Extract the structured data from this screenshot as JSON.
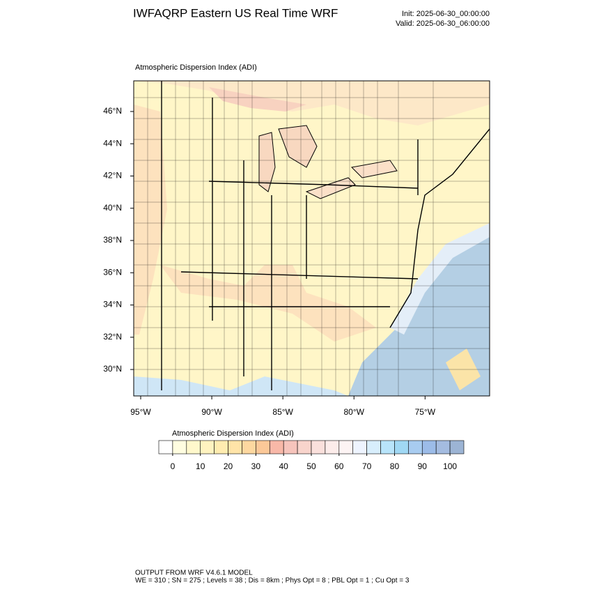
{
  "chart_data": {
    "type": "map",
    "title": "IWFAQRP Eastern US Real Time WRF",
    "init": "Init: 2025-06-30_00:00:00",
    "valid": "Valid: 2025-06-30_06:00:00",
    "map_title": "Atmospheric Dispersion Index   (ADI)",
    "xlim": [
      -95.49,
      -70.46
    ],
    "ylim": [
      28.36,
      47.9
    ],
    "xticks": [
      {
        "value": -95,
        "label": "95°W"
      },
      {
        "value": -90,
        "label": "90°W"
      },
      {
        "value": -85,
        "label": "85°W"
      },
      {
        "value": -80,
        "label": "80°W"
      },
      {
        "value": -75,
        "label": "75°W"
      }
    ],
    "yticks": [
      {
        "value": 30,
        "label": "30°N"
      },
      {
        "value": 32,
        "label": "32°N"
      },
      {
        "value": 34,
        "label": "34°N"
      },
      {
        "value": 36,
        "label": "36°N"
      },
      {
        "value": 38,
        "label": "38°N"
      },
      {
        "value": 40,
        "label": "40°N"
      },
      {
        "value": 42,
        "label": "42°N"
      },
      {
        "value": 44,
        "label": "44°N"
      },
      {
        "value": 46,
        "label": "46°N"
      }
    ],
    "colorbar": {
      "title": "Atmospheric Dispersion Index  (ADI)",
      "clim": [
        -5,
        105
      ],
      "ticks": [
        0,
        10,
        20,
        30,
        40,
        50,
        60,
        70,
        80,
        90,
        100
      ],
      "colors": [
        "#ffffff",
        "#fffde0",
        "#fff8cc",
        "#fff3c0",
        "#ffecb0",
        "#ffe4a8",
        "#fdd8a0",
        "#fbc898",
        "#f8b8a8",
        "#f6c4bc",
        "#f8d4cc",
        "#fae0dc",
        "#fcecea",
        "#fdf4f4",
        "#eef4ff",
        "#d8eefc",
        "#b8e4fa",
        "#a0d8f4",
        "#a8ccf0",
        "#9cbce8",
        "#a4bce0",
        "#9cb4d4"
      ]
    },
    "footer": [
      "OUTPUT FROM WRF V4.6.1 MODEL",
      "WE = 310 ; SN = 275 ; Levels = 38 ; Dis = 8km ; Phys Opt = 8 ; PBL Opt = 1 ; Cu Opt = 3"
    ]
  }
}
